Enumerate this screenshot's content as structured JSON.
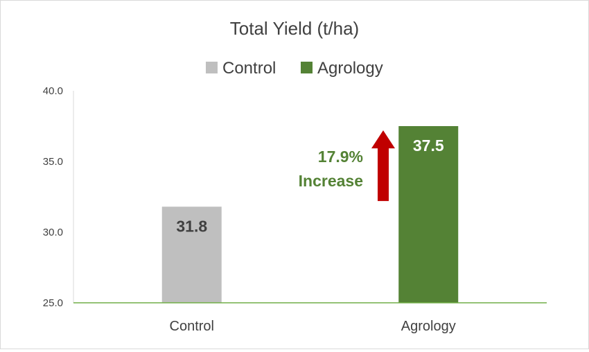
{
  "chart_data": {
    "type": "bar",
    "title": "Total Yield (t/ha)",
    "categories": [
      "Control",
      "Agrology"
    ],
    "series": [
      {
        "name": "Control",
        "values": [
          31.8,
          null
        ],
        "color": "#bfbfbf",
        "label_color": "#404040"
      },
      {
        "name": "Agrology",
        "values": [
          null,
          37.5
        ],
        "color": "#548235",
        "label_color": "#ffffff"
      }
    ],
    "data_labels": [
      "31.8",
      "37.5"
    ],
    "ylim": [
      25.0,
      40.0
    ],
    "yticks": [
      "25.0",
      "30.0",
      "35.0",
      "40.0"
    ],
    "ytick_values": [
      25,
      30,
      35,
      40
    ],
    "legend_position": "top",
    "grid": false,
    "axis_color": "#70ad47",
    "annotation": {
      "line1": "17.9%",
      "line2": "Increase",
      "color": "#548235",
      "arrow_color": "#c00000",
      "arrow_from": 32.2,
      "arrow_to": 37.2
    }
  }
}
